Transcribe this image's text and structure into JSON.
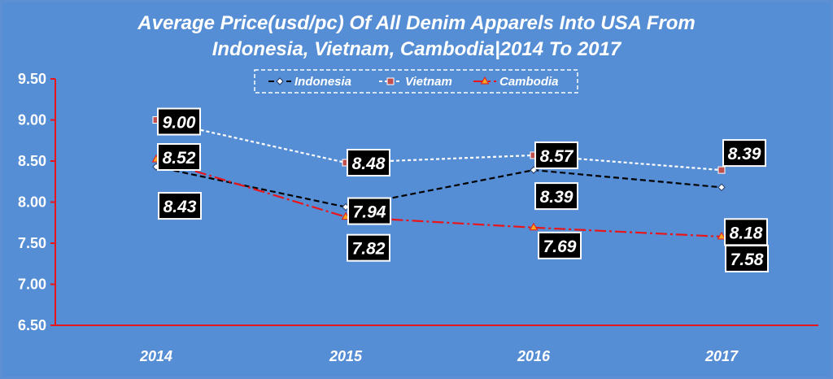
{
  "chart_data": {
    "type": "line",
    "title_lines": [
      "Average Price(usd/pc) Of All Denim Apparels Into USA From",
      "Indonesia, Vietnam, Cambodia|2014 To 2017"
    ],
    "categories": [
      "2014",
      "2015",
      "2016",
      "2017"
    ],
    "ylim": [
      6.5,
      9.5
    ],
    "yticks": [
      "6.50",
      "7.00",
      "7.50",
      "8.00",
      "8.50",
      "9.00",
      "9.50"
    ],
    "legend_position": "top-center",
    "grid": false,
    "series": [
      {
        "name": "Indonesia",
        "values": [
          8.43,
          7.94,
          8.39,
          8.18
        ],
        "labels": [
          "8.43",
          "7.94",
          "8.39",
          "8.18"
        ],
        "color": "#000000",
        "dash": "7,4",
        "marker": "diamond"
      },
      {
        "name": "Vietnam",
        "values": [
          9.0,
          8.48,
          8.57,
          8.39
        ],
        "labels": [
          "9.00",
          "8.48",
          "8.57",
          "8.39"
        ],
        "color": "#ffffff",
        "dash": "4,3",
        "marker": "square"
      },
      {
        "name": "Cambodia",
        "values": [
          8.52,
          7.82,
          7.69,
          7.58
        ],
        "labels": [
          "8.52",
          "7.82",
          "7.69",
          "7.58"
        ],
        "color": "#e8161b",
        "dash": "14,4,3,4",
        "marker": "triangle"
      }
    ]
  },
  "colors": {
    "background": "#558ed5",
    "frame": "#5d8fd2",
    "axis": "#e8161b",
    "label_box": "#000000",
    "label_border": "#ffffff",
    "vietnam_marker": "#c0504d",
    "cambodia_marker": "#f5a623"
  }
}
